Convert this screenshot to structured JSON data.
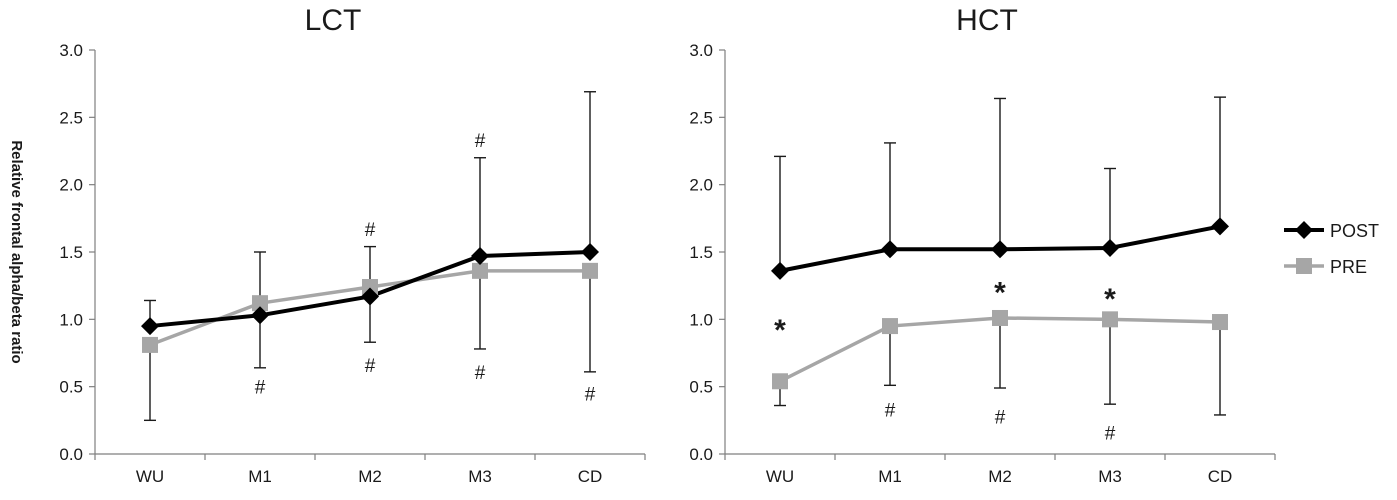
{
  "chart_data": [
    {
      "type": "line",
      "title": "LCT",
      "ylabel": "Relative frontal alpha/beta ratio",
      "xlabel": "",
      "categories": [
        "WU",
        "M1",
        "M2",
        "M3",
        "CD"
      ],
      "ylim": [
        0,
        3.0
      ],
      "yticks": [
        "0.0",
        "0.5",
        "1.0",
        "1.5",
        "2.0",
        "2.5",
        "3.0"
      ],
      "series": [
        {
          "name": "POST",
          "color": "#000000",
          "marker": "diamond",
          "values": [
            0.95,
            1.03,
            1.17,
            1.47,
            1.5
          ],
          "error_upper": [
            1.14,
            1.5,
            1.54,
            2.2,
            2.69
          ]
        },
        {
          "name": "PRE",
          "color": "#a6a6a6",
          "marker": "square",
          "values": [
            0.81,
            1.12,
            1.24,
            1.36,
            1.36
          ],
          "error_lower": [
            0.25,
            0.64,
            0.83,
            0.78,
            0.61
          ]
        }
      ],
      "annotations": [
        {
          "text": "#",
          "category": "M1",
          "y": 0.5
        },
        {
          "text": "#",
          "category": "M2",
          "y": 1.67
        },
        {
          "text": "#",
          "category": "M2",
          "y": 0.66
        },
        {
          "text": "#",
          "category": "M3",
          "y": 2.33
        },
        {
          "text": "#",
          "category": "M3",
          "y": 0.61
        },
        {
          "text": "#",
          "category": "CD",
          "y": 0.45
        }
      ]
    },
    {
      "type": "line",
      "title": "HCT",
      "ylabel": "",
      "xlabel": "",
      "categories": [
        "WU",
        "M1",
        "M2",
        "M3",
        "CD"
      ],
      "ylim": [
        0,
        3.0
      ],
      "yticks": [
        "0.0",
        "0.5",
        "1.0",
        "1.5",
        "2.0",
        "2.5",
        "3.0"
      ],
      "series": [
        {
          "name": "POST",
          "color": "#000000",
          "marker": "diamond",
          "values": [
            1.36,
            1.52,
            1.52,
            1.53,
            1.69
          ],
          "error_upper": [
            2.21,
            2.31,
            2.64,
            2.12,
            2.65
          ]
        },
        {
          "name": "PRE",
          "color": "#a6a6a6",
          "marker": "square",
          "values": [
            0.54,
            0.95,
            1.01,
            1.0,
            0.98
          ],
          "error_lower": [
            0.36,
            0.51,
            0.49,
            0.37,
            0.29
          ]
        }
      ],
      "annotations": [
        {
          "text": "*",
          "category": "WU",
          "y": 0.95
        },
        {
          "text": "*",
          "category": "M2",
          "y": 1.23
        },
        {
          "text": "*",
          "category": "M3",
          "y": 1.18
        },
        {
          "text": "#",
          "category": "M1",
          "y": 0.33
        },
        {
          "text": "#",
          "category": "M2",
          "y": 0.28
        },
        {
          "text": "#",
          "category": "M3",
          "y": 0.16
        }
      ]
    }
  ],
  "legend": {
    "placement": "right",
    "items": [
      {
        "label": "POST",
        "color": "#000000",
        "marker": "diamond"
      },
      {
        "label": "PRE",
        "color": "#a6a6a6",
        "marker": "square"
      }
    ]
  }
}
